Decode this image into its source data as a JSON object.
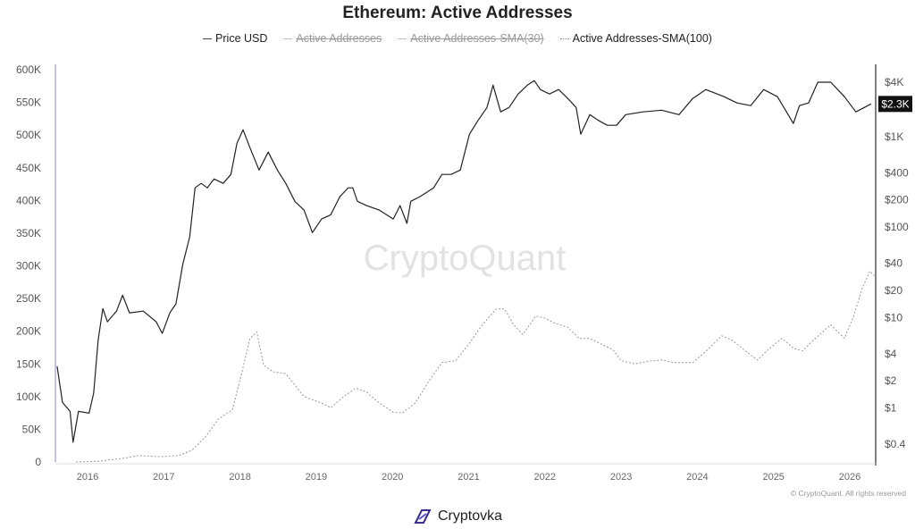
{
  "chart_data": {
    "type": "line",
    "title": "Ethereum: Active Addresses",
    "legend": [
      {
        "label": "Price USD",
        "active": true
      },
      {
        "label": "Active Addresses",
        "active": false
      },
      {
        "label": "Active Addresses-SMA(30)",
        "active": false
      },
      {
        "label": "Active Addresses-SMA(100)",
        "active": true
      }
    ],
    "legend_position": "top-center",
    "x_ticks": [
      "2016",
      "2017",
      "2018",
      "2019",
      "2020",
      "2021",
      "2022",
      "2023",
      "2024",
      "2025",
      "2026"
    ],
    "xlim": [
      2015.6,
      2026.35
    ],
    "left_axis": {
      "ylim": [
        0,
        600000
      ],
      "ticks": [
        "0",
        "50K",
        "100K",
        "150K",
        "200K",
        "250K",
        "300K",
        "350K",
        "400K",
        "450K",
        "500K",
        "550K",
        "600K"
      ]
    },
    "right_axis": {
      "scale": "log",
      "ylim": [
        0.4,
        4000
      ],
      "ticks": [
        {
          "label": "$4K",
          "value": 4000
        },
        {
          "label": "$1K",
          "value": 1000
        },
        {
          "label": "$400",
          "value": 400
        },
        {
          "label": "$200",
          "value": 200
        },
        {
          "label": "$100",
          "value": 100
        },
        {
          "label": "$40",
          "value": 40
        },
        {
          "label": "$20",
          "value": 20
        },
        {
          "label": "$10",
          "value": 10
        },
        {
          "label": "$4",
          "value": 4
        },
        {
          "label": "$2",
          "value": 2
        },
        {
          "label": "$1",
          "value": 1
        },
        {
          "label": "$0.4",
          "value": 0.4
        }
      ],
      "current_label": "$2.3K"
    },
    "series": [
      {
        "name": "Price USD",
        "axis": "right",
        "x": [
          2015.6,
          2015.67,
          2015.77,
          2015.81,
          2015.88,
          2016.02,
          2016.08,
          2016.14,
          2016.2,
          2016.26,
          2016.38,
          2016.46,
          2016.55,
          2016.73,
          2016.9,
          2016.98,
          2017.08,
          2017.16,
          2017.25,
          2017.34,
          2017.41,
          2017.49,
          2017.57,
          2017.66,
          2017.78,
          2017.88,
          2017.96,
          2018.04,
          2018.13,
          2018.25,
          2018.37,
          2018.49,
          2018.6,
          2018.72,
          2018.84,
          2018.95,
          2019.07,
          2019.19,
          2019.31,
          2019.42,
          2019.48,
          2019.54,
          2019.66,
          2019.83,
          2020.01,
          2020.1,
          2020.19,
          2020.24,
          2020.36,
          2020.54,
          2020.65,
          2020.77,
          2020.89,
          2021.01,
          2021.12,
          2021.24,
          2021.32,
          2021.42,
          2021.53,
          2021.65,
          2021.77,
          2021.86,
          2021.94,
          2022.06,
          2022.18,
          2022.3,
          2022.41,
          2022.47,
          2022.59,
          2022.71,
          2022.82,
          2022.94,
          2023.06,
          2023.29,
          2023.53,
          2023.76,
          2023.94,
          2024.11,
          2024.35,
          2024.52,
          2024.7,
          2024.87,
          2025.05,
          2025.17,
          2025.26,
          2025.34,
          2025.46,
          2025.58,
          2025.75,
          2025.93,
          2026.08,
          2026.28
        ],
        "values": [
          2.9,
          1.16,
          0.92,
          0.42,
          0.92,
          0.88,
          1.46,
          5.7,
          12.6,
          9.0,
          11.8,
          17.7,
          11.3,
          11.8,
          9.0,
          6.7,
          11.3,
          14.2,
          39,
          78,
          272,
          305,
          272,
          341,
          305,
          383,
          847,
          1194,
          757,
          428,
          676,
          428,
          305,
          193,
          154,
          87,
          123,
          137,
          217,
          272,
          272,
          193,
          173,
          154,
          123,
          173,
          110,
          193,
          217,
          272,
          383,
          383,
          428,
          1064,
          1496,
          2104,
          3715,
          1879,
          2104,
          2965,
          3715,
          4169,
          3319,
          2965,
          3319,
          2642,
          2104,
          1064,
          1754,
          1496,
          1336,
          1336,
          1754,
          1879,
          1964,
          1754,
          2642,
          3319,
          2767,
          2360,
          2203,
          3319,
          2767,
          1879,
          1400,
          2203,
          2360,
          4000,
          4000,
          2767,
          1879,
          2300
        ]
      },
      {
        "name": "Active Addresses-SMA(100)",
        "axis": "left",
        "x": [
          2015.85,
          2016.14,
          2016.49,
          2016.67,
          2016.96,
          2017.2,
          2017.37,
          2017.55,
          2017.72,
          2017.9,
          2018.02,
          2018.13,
          2018.22,
          2018.31,
          2018.43,
          2018.6,
          2018.84,
          2019.07,
          2019.19,
          2019.36,
          2019.52,
          2019.66,
          2019.83,
          2020.01,
          2020.13,
          2020.3,
          2020.48,
          2020.65,
          2020.83,
          2021.01,
          2021.18,
          2021.36,
          2021.47,
          2021.59,
          2021.71,
          2021.88,
          2022.0,
          2022.12,
          2022.3,
          2022.45,
          2022.59,
          2022.71,
          2022.89,
          2023.0,
          2023.18,
          2023.35,
          2023.53,
          2023.7,
          2023.94,
          2024.11,
          2024.32,
          2024.46,
          2024.64,
          2024.79,
          2024.93,
          2025.11,
          2025.26,
          2025.38,
          2025.52,
          2025.75,
          2025.93,
          2026.05,
          2026.16,
          2026.26,
          2026.32
        ],
        "values": [
          0,
          1000,
          6000,
          10000,
          8000,
          10000,
          18000,
          39000,
          66000,
          80000,
          135000,
          189000,
          199000,
          148000,
          138000,
          135000,
          100000,
          90000,
          83000,
          100000,
          113000,
          107000,
          90000,
          76000,
          75000,
          90000,
          124000,
          152000,
          155000,
          182000,
          210000,
          234000,
          234000,
          210000,
          195000,
          223000,
          220000,
          213000,
          206000,
          189000,
          189000,
          182000,
          172000,
          155000,
          150000,
          154000,
          156000,
          152000,
          152000,
          169000,
          193000,
          186000,
          169000,
          156000,
          172000,
          189000,
          174000,
          170000,
          186000,
          210000,
          189000,
          223000,
          264000,
          292000,
          285000
        ]
      }
    ]
  },
  "watermark": "CryptoQuant",
  "copyright": "© CryptoQuant. All rights reserved",
  "footer": {
    "brand": "Cryptovka"
  },
  "colors": {
    "price": "#222222",
    "sma100": "#999999",
    "left_axis": "#b9a8e8",
    "label_bg": "#111111"
  }
}
